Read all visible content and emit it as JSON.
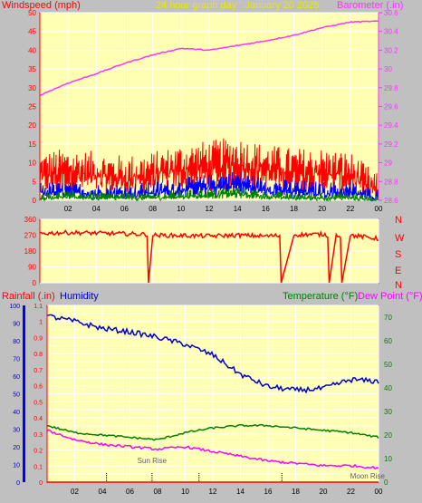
{
  "header": {
    "left_label": "Windspeed (mph)",
    "title": "24 hour graph day : January 20 2025",
    "right_label": "Barometer (.in)"
  },
  "colors": {
    "wind_gust": "#ff0000",
    "wind_avg": "#0000ff",
    "wind_low": "#008000",
    "wind_speed_axis": "#ff0000",
    "barometer": "#ff33ff",
    "title": "#e8e800",
    "direction": "#ff0000",
    "rain": "#ff0000",
    "humidity": "#0000cc",
    "temperature": "#008000",
    "dew_point": "#ff00ff",
    "plot_bg": "#ffffb4",
    "grid": "#ffffff"
  },
  "bottom_header": {
    "rainfall_label": "Rainfall (.in)",
    "humidity_label": "Humidity",
    "temperature_label": "Temperature (°F)",
    "dew_point_label": "Dew Point (°F)"
  },
  "annotations": {
    "sunrise": "Sun Rise",
    "moonrise": "Moon Rise"
  },
  "chart_data": [
    {
      "type": "line",
      "name_key": "wind_barometer",
      "x_ticks": [
        "02",
        "04",
        "06",
        "08",
        "10",
        "12",
        "14",
        "16",
        "18",
        "20",
        "22",
        "00"
      ],
      "wind_ticks": [
        "0",
        "5",
        "10",
        "15",
        "20",
        "25",
        "30",
        "35",
        "40",
        "45",
        "50"
      ],
      "wind_ylim": [
        0,
        50
      ],
      "baro_ticks": [
        "28.6",
        "28.8",
        "29",
        "29.2",
        "29.4",
        "29.6",
        "29.8",
        "30",
        "30.2",
        "30.4",
        "30.6"
      ],
      "baro_ylim": [
        28.6,
        30.6
      ],
      "x": [
        0,
        2,
        4,
        6,
        8,
        10,
        12,
        14,
        16,
        18,
        20,
        22,
        24
      ],
      "series": [
        {
          "name": "Barometer",
          "axis": "right",
          "values": [
            29.72,
            29.85,
            29.95,
            30.06,
            30.15,
            30.22,
            30.2,
            30.25,
            30.3,
            30.36,
            30.44,
            30.5,
            30.51
          ]
        },
        {
          "name": "Gust",
          "axis": "left",
          "values": [
            9,
            10,
            9,
            8,
            9,
            11,
            12,
            13,
            11,
            10,
            10,
            9,
            3
          ]
        },
        {
          "name": "Average",
          "axis": "left",
          "values": [
            3,
            3,
            2.5,
            2.5,
            3,
            4,
            5,
            6,
            4,
            3.5,
            3,
            3,
            1
          ]
        },
        {
          "name": "Low",
          "axis": "left",
          "values": [
            1,
            1.5,
            1,
            1,
            1,
            1.5,
            2,
            2.5,
            1.5,
            1,
            1,
            1,
            0
          ]
        }
      ]
    },
    {
      "type": "line",
      "name_key": "wind_direction",
      "x_ticks": [
        "02",
        "04",
        "06",
        "08",
        "10",
        "12",
        "14",
        "16",
        "18",
        "20",
        "22",
        "00"
      ],
      "y_ticks": [
        "0",
        "90",
        "180",
        "270",
        "360"
      ],
      "ylim": [
        0,
        360
      ],
      "compass": [
        "N",
        "W",
        "S",
        "E",
        "N"
      ],
      "x": [
        0,
        2,
        4,
        6,
        7.6,
        7.7,
        8,
        10,
        12,
        14,
        16,
        17,
        17.1,
        18,
        20,
        20.4,
        20.5,
        21,
        21.3,
        21.4,
        22,
        24
      ],
      "values": [
        280,
        285,
        282,
        278,
        275,
        0,
        270,
        268,
        265,
        270,
        265,
        268,
        0,
        272,
        275,
        270,
        0,
        270,
        268,
        0,
        270,
        250
      ]
    },
    {
      "type": "line",
      "name_key": "rain_humidity_temp",
      "x_ticks": [
        "02",
        "04",
        "06",
        "08",
        "10",
        "12",
        "14",
        "16",
        "18",
        "20",
        "22",
        "00"
      ],
      "rain_ticks": [
        "0",
        "0.05",
        "0.1",
        "0.15",
        "0.2",
        "0.25",
        "0.3",
        "0.35",
        "0.4",
        "0.45",
        "0.5",
        "0.55",
        "0.6",
        "0.65",
        "0.7",
        "0.75",
        "0.8",
        "0.85",
        "0.9",
        "0.95",
        "1",
        "1.05",
        "1.1"
      ],
      "rain_ylim": [
        0,
        1.1
      ],
      "humidity_ticks": [
        "0",
        "10",
        "20",
        "30",
        "40",
        "50",
        "60",
        "70",
        "80",
        "90",
        "100"
      ],
      "humidity_ylim": [
        0,
        100
      ],
      "temp_ticks": [
        "0",
        "10",
        "20",
        "30",
        "40",
        "50",
        "60",
        "70"
      ],
      "temp_ylim": [
        0,
        75
      ],
      "x": [
        0,
        2,
        4,
        6,
        8,
        10,
        12,
        14,
        16,
        18,
        20,
        22,
        24
      ],
      "series": [
        {
          "name": "Humidity",
          "axis": "humidity",
          "values": [
            94,
            91,
            87,
            85,
            82,
            78,
            72,
            61,
            54,
            52,
            53,
            58,
            57
          ]
        },
        {
          "name": "Temperature",
          "axis": "temperature",
          "values": [
            24,
            21,
            20,
            19,
            18,
            21,
            23,
            24,
            24,
            23,
            22,
            21,
            19
          ]
        },
        {
          "name": "Dew Point",
          "axis": "temperature",
          "values": [
            22,
            18,
            16,
            15,
            14,
            15,
            13,
            11,
            9,
            8,
            7,
            7,
            6
          ]
        },
        {
          "name": "Rainfall",
          "axis": "rain",
          "values": [
            0,
            0,
            0,
            0,
            0,
            0,
            0,
            0,
            0,
            0,
            0,
            0,
            0
          ]
        }
      ]
    }
  ]
}
